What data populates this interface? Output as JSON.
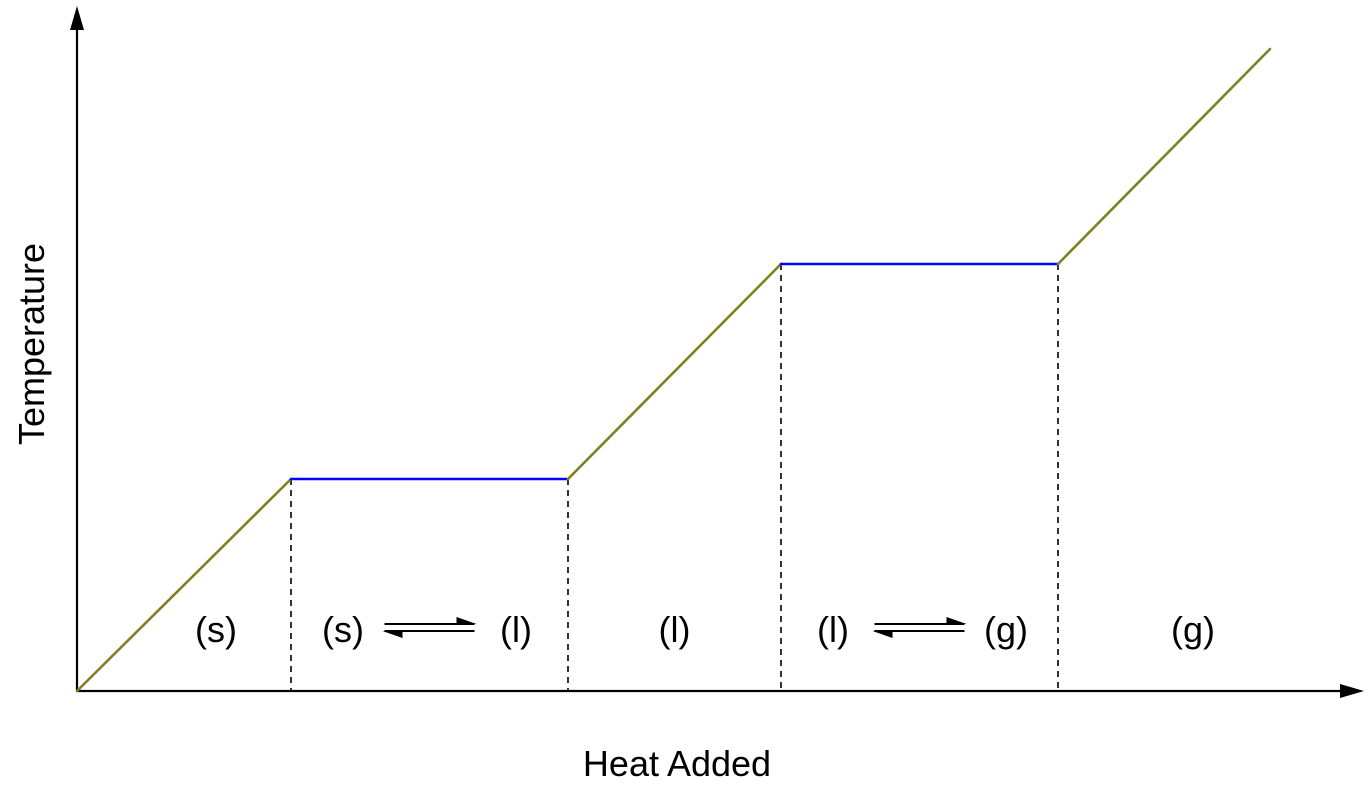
{
  "chart_data": {
    "type": "line",
    "title": "",
    "xlabel": "Heat Added",
    "ylabel": "Temperature",
    "grid": false,
    "legend": "none",
    "series": [
      {
        "segments": [
          {
            "kind": "sloped",
            "from": [
              0,
              0
            ],
            "to": [
              1,
              1
            ]
          },
          {
            "kind": "plateau",
            "from": [
              1,
              1
            ],
            "to": [
              2,
              1
            ]
          },
          {
            "kind": "sloped",
            "from": [
              2,
              1
            ],
            "to": [
              3,
              2
            ]
          },
          {
            "kind": "plateau",
            "from": [
              3,
              2
            ],
            "to": [
              4,
              2
            ]
          },
          {
            "kind": "sloped",
            "from": [
              4,
              2
            ],
            "to": [
              5.3,
              3.0
            ]
          }
        ]
      }
    ],
    "phase_boundaries": [
      1,
      2,
      3,
      4
    ],
    "regions": [
      {
        "phases": [
          "(s)"
        ],
        "equilibrium": false
      },
      {
        "phases": [
          "(s)",
          "(l)"
        ],
        "equilibrium": true
      },
      {
        "phases": [
          "(l)"
        ],
        "equilibrium": false
      },
      {
        "phases": [
          "(l)",
          "(g)"
        ],
        "equilibrium": true
      },
      {
        "phases": [
          "(g)"
        ],
        "equilibrium": false
      }
    ],
    "colors": {
      "sloped": "#808020",
      "plateau": "#0000ff",
      "axis": "#000000",
      "boundary": "#000000"
    }
  }
}
